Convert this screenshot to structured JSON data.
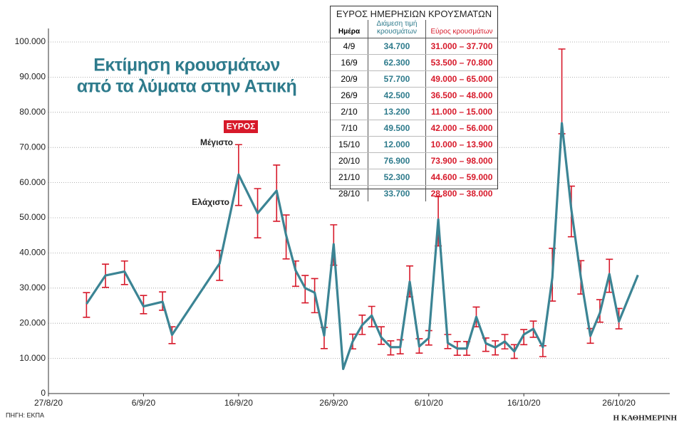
{
  "chart_data": {
    "type": "line",
    "title": [
      "Εκτίμηση κρουσμάτων",
      "από τα λύματα στην Αττική"
    ],
    "annotations": [
      "ΕΥΡΟΣ",
      "Μέγιστο",
      "Ελάχιστο"
    ],
    "source": "ΠΗΓΗ: ΕΚΠΑ",
    "brand": "Η ΚΑΘΗΜΕΡΙΝΗ",
    "x": [
      "31/8/20",
      "2/9/20",
      "4/9/20",
      "6/9/20",
      "8/9/20",
      "9/9/20",
      "14/9/20",
      "16/9/20",
      "18/9/20",
      "20/9/20",
      "21/9/20",
      "22/9/20",
      "23/9/20",
      "24/9/20",
      "25/9/20",
      "26/9/20",
      "27/9/20",
      "28/9/20",
      "29/9/20",
      "30/9/20",
      "1/10/20",
      "2/10/20",
      "3/10/20",
      "4/10/20",
      "5/10/20",
      "6/10/20",
      "7/10/20",
      "8/10/20",
      "9/10/20",
      "10/10/20",
      "11/10/20",
      "12/10/20",
      "13/10/20",
      "14/10/20",
      "15/10/20",
      "16/10/20",
      "17/10/20",
      "18/10/20",
      "19/10/20",
      "20/10/20",
      "21/10/20",
      "22/10/20",
      "23/10/20",
      "24/10/20",
      "25/10/20",
      "26/10/20",
      "28/10/20"
    ],
    "series": [
      {
        "color": "#3b8494",
        "error_color": "#d7192a",
        "values": [
          25500,
          33600,
          34700,
          24800,
          26100,
          16700,
          37000,
          62300,
          51300,
          57700,
          45000,
          35000,
          30000,
          28700,
          16500,
          42500,
          7000,
          14800,
          19500,
          22200,
          16000,
          13200,
          13200,
          31800,
          13400,
          15800,
          49500,
          14400,
          12800,
          12800,
          21800,
          14300,
          13100,
          14800,
          12000,
          16800,
          18400,
          13200,
          33000,
          76900,
          52300,
          33000,
          16400,
          22900,
          34000,
          20500,
          33700
        ],
        "error_low": [
          21700,
          30200,
          31000,
          22700,
          23700,
          14200,
          32200,
          53500,
          44300,
          49000,
          38300,
          30500,
          25800,
          23000,
          12800,
          36500,
          null,
          12700,
          16800,
          19000,
          14000,
          11000,
          11300,
          27500,
          11500,
          13800,
          42000,
          12800,
          10900,
          10900,
          19000,
          12000,
          11000,
          12700,
          10000,
          13900,
          16000,
          10500,
          26300,
          73900,
          44600,
          28300,
          14300,
          20300,
          28800,
          18400,
          null
        ],
        "error_high": [
          28700,
          36800,
          37700,
          27900,
          28900,
          19000,
          40700,
          70800,
          58300,
          65000,
          50800,
          37700,
          33600,
          32700,
          18800,
          48000,
          null,
          16900,
          22300,
          24800,
          19000,
          15000,
          15300,
          36300,
          15600,
          17900,
          56000,
          16800,
          14800,
          14800,
          24600,
          15800,
          15000,
          16800,
          13900,
          18200,
          20600,
          13600,
          41300,
          98000,
          59000,
          37800,
          18500,
          26700,
          38200,
          24200,
          null
        ]
      }
    ],
    "xlim": [
      "27/8/20",
      "30/10/20"
    ],
    "xticks": [
      "27/8/20",
      "6/9/20",
      "16/9/20",
      "26/9/20",
      "6/10/20",
      "16/10/20",
      "26/10/20"
    ],
    "ylim": [
      0,
      100000
    ],
    "yticks": [
      0,
      {
        "value": 10000,
        "label": "10.000"
      },
      {
        "value": 20000,
        "label": "20.000"
      },
      {
        "value": 30000,
        "label": "30.000"
      },
      {
        "value": 40000,
        "label": "40.000"
      },
      {
        "value": 50000,
        "label": "50.000"
      },
      {
        "value": 60000,
        "label": "60.000"
      },
      {
        "value": 70000,
        "label": "70.000"
      },
      {
        "value": 80000,
        "label": "80.000"
      },
      {
        "value": 90000,
        "label": "90.000"
      },
      {
        "value": 100000,
        "label": "100.000"
      }
    ],
    "grid": true
  },
  "table": {
    "title": "ΕΥΡΟΣ ΗΜΕΡΗΣΙΩΝ ΚΡΟΥΣΜΑΤΩΝ",
    "header": [
      "Ημέρα",
      "Διάμεση τιμή κρουσμάτων",
      "Εύρος κρουσμάτων"
    ],
    "rows": [
      [
        "4/9",
        "34.700",
        "31.000 – 37.700"
      ],
      [
        "16/9",
        "62.300",
        "53.500 – 70.800"
      ],
      [
        "20/9",
        "57.700",
        "49.000 – 65.000"
      ],
      [
        "26/9",
        "42.500",
        "36.500 – 48.000"
      ],
      [
        "2/10",
        "13.200",
        "11.000 – 15.000"
      ],
      [
        "7/10",
        "49.500",
        "42.000 – 56.000"
      ],
      [
        "15/10",
        "12.000",
        "10.000 – 13.900"
      ],
      [
        "20/10",
        "76.900",
        "73.900 – 98.000"
      ],
      [
        "21/10",
        "52.300",
        "44.600 – 59.000"
      ],
      [
        "28/10",
        "33.700",
        "28.800 – 38.000"
      ]
    ]
  }
}
